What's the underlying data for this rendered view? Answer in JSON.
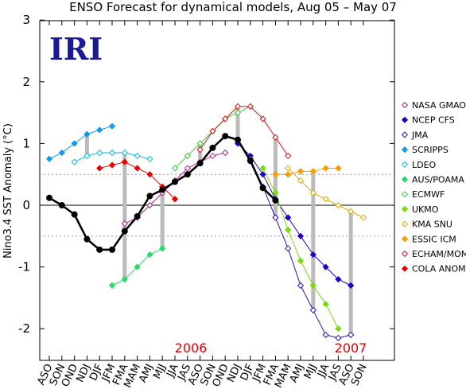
{
  "chart_data": {
    "type": "line",
    "title": "ENSO Forecast for dynamical models, Aug 05 – May 07",
    "logo": "IRI",
    "ylabel": "Nino3.4 SST Anomaly (°C)",
    "ylim": [
      -2.5,
      3
    ],
    "yticks": [
      "-2",
      "-1",
      "0",
      "1",
      "2",
      "3"
    ],
    "categories": [
      "ASO",
      "SON",
      "OND",
      "NDJ",
      "DJF",
      "JFM",
      "FMA",
      "MAM",
      "AMJ",
      "MJJ",
      "JJA",
      "JAS",
      "ASO",
      "SON",
      "OND",
      "NDJ",
      "DJF",
      "JFM",
      "FMA",
      "MAM",
      "AMJ",
      "MJJ",
      "JJA",
      "JAS",
      "ASO",
      "SON"
    ],
    "year_labels": [
      "2006",
      "2007"
    ],
    "reference_lines": [
      0.5,
      -0.5
    ],
    "observed": {
      "name": "observed",
      "color": "#000000",
      "values": [
        0.12,
        0.0,
        -0.15,
        -0.55,
        -0.72,
        -0.72,
        -0.42,
        -0.18,
        0.15,
        0.25,
        0.38,
        0.5,
        0.68,
        0.93,
        1.12,
        1.06,
        0.72,
        0.28,
        0.08,
        null,
        null,
        null,
        null,
        null,
        null,
        null
      ]
    },
    "forecasts": [
      {
        "name": "NASA GMAO",
        "color": "#aa2288",
        "marker": "diamond-open",
        "start": 6,
        "values": [
          -0.3,
          -0.2,
          0.0,
          0.2,
          0.4,
          0.6,
          0.7,
          0.8,
          0.85
        ]
      },
      {
        "name": "NCEP CFS",
        "color": "#2200cc",
        "marker": "diamond",
        "start": 15,
        "values": [
          1.0,
          0.8,
          0.5,
          0.1,
          -0.2,
          -0.5,
          -0.8,
          -1.0,
          -1.2,
          -1.3
        ]
      },
      {
        "name": "JMA",
        "color": "#3311aa",
        "marker": "diamond-open",
        "start": 16,
        "values": [
          0.75,
          0.3,
          -0.2,
          -0.7,
          -1.3,
          -1.7,
          -2.1,
          -2.15,
          -2.1
        ]
      },
      {
        "name": "SCRIPPS",
        "color": "#1199ee",
        "marker": "diamond",
        "start": 0,
        "values": [
          0.75,
          0.85,
          1.0,
          1.15,
          1.22,
          1.28
        ]
      },
      {
        "name": "LDEO",
        "color": "#00bbdd",
        "marker": "diamond-open",
        "start": 2,
        "values": [
          0.7,
          0.8,
          0.85,
          0.85,
          0.85,
          0.8,
          0.75
        ]
      },
      {
        "name": "AUS/POAMA",
        "color": "#22dd66",
        "marker": "diamond",
        "start": 5,
        "values": [
          -1.3,
          -1.2,
          -1.0,
          -0.8,
          -0.7
        ]
      },
      {
        "name": "ECMWF",
        "color": "#33cc33",
        "marker": "diamond-open",
        "start": 10,
        "values": [
          0.6,
          0.8,
          1.0,
          1.2,
          1.4,
          1.5,
          1.6
        ]
      },
      {
        "name": "UKMO",
        "color": "#77dd11",
        "marker": "diamond",
        "start": 17,
        "values": [
          0.6,
          0.2,
          -0.4,
          -0.9,
          -1.3,
          -1.6,
          -2.0
        ]
      },
      {
        "name": "KMA SNU",
        "color": "#ddaa00",
        "marker": "diamond-open",
        "start": 19,
        "values": [
          0.6,
          0.4,
          0.2,
          0.1,
          0.0,
          -0.1,
          -0.2
        ]
      },
      {
        "name": "ESSIC ICM",
        "color": "#ff9900",
        "marker": "diamond",
        "start": 18,
        "values": [
          0.5,
          0.5,
          0.55,
          0.55,
          0.6,
          0.6
        ]
      },
      {
        "name": "ECHAM/MOM",
        "color": "#dd1111",
        "marker": "diamond-open",
        "start": 12,
        "values": [
          0.9,
          1.2,
          1.4,
          1.6,
          1.6,
          1.4,
          1.1,
          0.8
        ]
      },
      {
        "name": "COLA ANOM",
        "color": "#ee0000",
        "marker": "diamond",
        "start": 4,
        "values": [
          0.6,
          0.65,
          0.7,
          0.6,
          0.5,
          0.3,
          0.1
        ]
      }
    ],
    "legend_position": "right"
  }
}
